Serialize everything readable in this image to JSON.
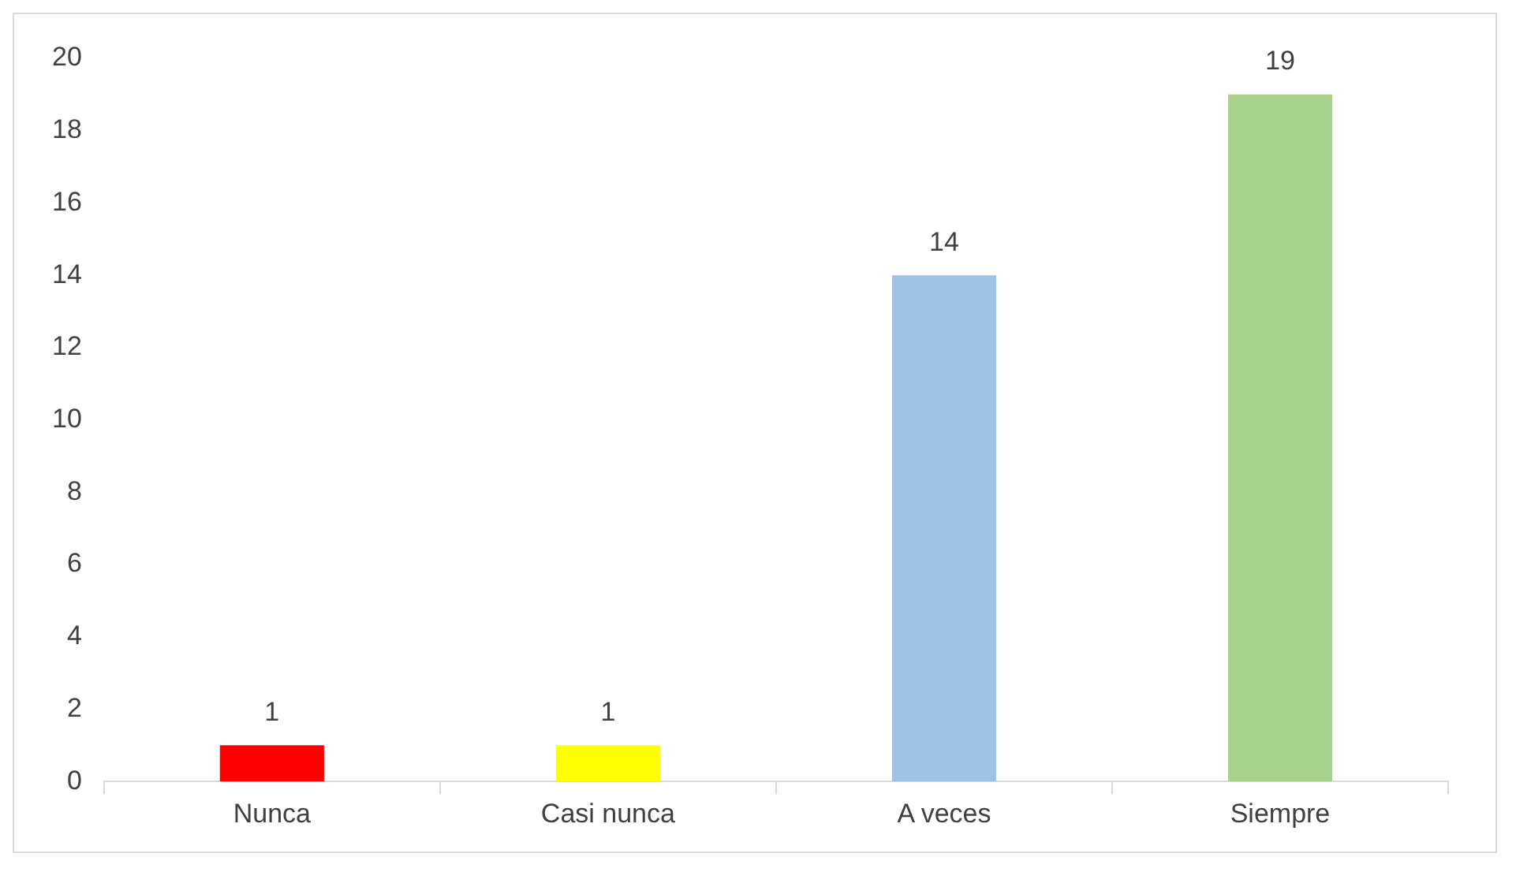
{
  "chart_data": {
    "type": "bar",
    "categories": [
      "Nunca",
      "Casi nunca",
      "A veces",
      "Siempre"
    ],
    "values": [
      1,
      1,
      14,
      19
    ],
    "colors": [
      "#ff0000",
      "#ffff00",
      "#9dc3e6",
      "#a9d18e"
    ],
    "ylim": [
      0,
      20
    ],
    "yticks": [
      0,
      2,
      4,
      6,
      8,
      10,
      12,
      14,
      16,
      18,
      20
    ],
    "grid": false,
    "legend": false,
    "data_labels": true
  }
}
